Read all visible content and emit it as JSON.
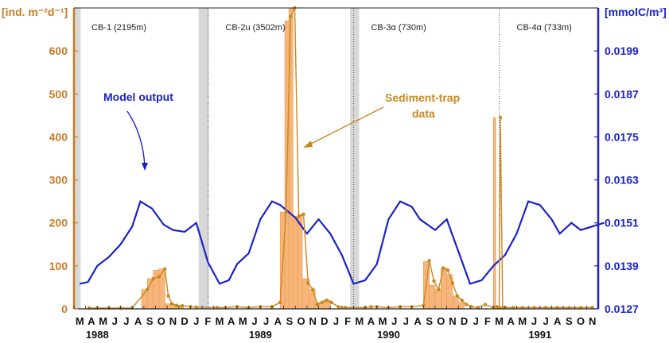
{
  "colors": {
    "left_axis": "#c87a28",
    "right_axis": "#1a22c8",
    "bar_fill": "#f7b57a",
    "bar_stroke": "#e59a55",
    "trap_line": "#c8891e",
    "model_line": "#1a22c8",
    "gap_shade": "#d8d8d8"
  },
  "chart_data": {
    "type": "bar+line",
    "left_axis": {
      "label": "[ind. m⁻²d⁻¹]",
      "ticks": [
        "0",
        "100",
        "200",
        "300",
        "400",
        "500",
        "600"
      ],
      "range": [
        0,
        700
      ]
    },
    "right_axis": {
      "label": "[mmolC/m³]",
      "ticks": [
        "0.0127",
        "0.0139",
        "0.0151",
        "0.0163",
        "0.0175",
        "0.0187",
        "0.0199"
      ],
      "range": [
        0.0127,
        0.0211
      ]
    },
    "x_axis": {
      "month_labels": [
        "M",
        "A",
        "M",
        "J",
        "J",
        "A",
        "S",
        "O",
        "N",
        "D",
        "J",
        "F",
        "M",
        "A",
        "M",
        "J",
        "J",
        "A",
        "S",
        "O",
        "N",
        "D",
        "J",
        "F",
        "M",
        "A",
        "M",
        "J",
        "J",
        "A",
        "S",
        "O",
        "N",
        "D",
        "J",
        "F",
        "M",
        "A",
        "M",
        "J",
        "J",
        "A",
        "S",
        "O",
        "N"
      ],
      "year_labels": [
        {
          "text": "1988",
          "month_index": 1.5
        },
        {
          "text": "1989",
          "month_index": 15.5
        },
        {
          "text": "1990",
          "month_index": 26.5
        },
        {
          "text": "1991",
          "month_index": 39.5
        }
      ]
    },
    "deployments": [
      {
        "label": "CB-1 (2195m)",
        "start": 0,
        "end": 11.5
      },
      {
        "label": "CB-2u (3502m)",
        "start": 11.5,
        "end": 24
      },
      {
        "label": "CB-3α (730m)",
        "start": 24,
        "end": 36
      },
      {
        "label": "CB-4α (733m)",
        "start": 36.5,
        "end": 45
      }
    ],
    "gaps": [
      [
        0,
        0.3
      ],
      [
        10.7,
        11.3
      ],
      [
        23.7,
        24.2
      ]
    ],
    "separators": [
      11.5,
      24,
      36.5
    ],
    "bars": [
      {
        "x0": 5.8,
        "x1": 6.3,
        "value": 45
      },
      {
        "x0": 6.3,
        "x1": 6.8,
        "value": 70
      },
      {
        "x0": 6.8,
        "x1": 7.3,
        "value": 90
      },
      {
        "x0": 7.3,
        "x1": 7.8,
        "value": 93
      },
      {
        "x0": 7.8,
        "x1": 8.6,
        "value": 12
      },
      {
        "x0": 8.6,
        "x1": 9.4,
        "value": 8
      },
      {
        "x0": 17.7,
        "x1": 18.1,
        "value": 225
      },
      {
        "x0": 18.1,
        "x1": 18.45,
        "value": 670
      },
      {
        "x0": 18.45,
        "x1": 18.8,
        "value": 700
      },
      {
        "x0": 18.8,
        "x1": 19.2,
        "value": 215
      },
      {
        "x0": 19.2,
        "x1": 19.6,
        "value": 220
      },
      {
        "x0": 19.6,
        "x1": 20.2,
        "value": 70
      },
      {
        "x0": 20.2,
        "x1": 20.7,
        "value": 45
      },
      {
        "x0": 20.7,
        "x1": 21.4,
        "value": 15
      },
      {
        "x0": 21.4,
        "x1": 22.0,
        "value": 20
      },
      {
        "x0": 30.0,
        "x1": 30.5,
        "value": 110
      },
      {
        "x0": 30.5,
        "x1": 31.0,
        "value": 55
      },
      {
        "x0": 31.0,
        "x1": 31.5,
        "value": 45
      },
      {
        "x0": 31.5,
        "x1": 32.0,
        "value": 95
      },
      {
        "x0": 32.0,
        "x1": 32.5,
        "value": 80
      },
      {
        "x0": 32.5,
        "x1": 33.0,
        "value": 30
      },
      {
        "x0": 33.0,
        "x1": 33.5,
        "value": 15
      },
      {
        "x0": 36.0,
        "x1": 36.2,
        "value": 445
      }
    ],
    "trap_series": {
      "name": "Sediment-trap data",
      "x": [
        0.8,
        1.5,
        2.5,
        3.5,
        4.5,
        5.8,
        6.3,
        6.8,
        7.3,
        7.6,
        7.9,
        8.3,
        8.8,
        9.5,
        10.0,
        11.8,
        12.5,
        13.5,
        14.5,
        15.5,
        16.5,
        17.2,
        17.7,
        18.1,
        18.45,
        18.8,
        19.2,
        19.6,
        20.0,
        20.4,
        20.8,
        21.2,
        21.6,
        22.2,
        22.8,
        24.5,
        25.0,
        25.5,
        26.5,
        27.5,
        28.5,
        29.5,
        30.0,
        30.4,
        30.8,
        31.2,
        31.6,
        32.0,
        32.4,
        32.8,
        33.2,
        33.6,
        34.2,
        34.8,
        35.5,
        35.8,
        36.0,
        36.1,
        36.3,
        36.5,
        37.2,
        38.0,
        39.0,
        40.0,
        41.0,
        42.0,
        43.0,
        44.0
      ],
      "values": [
        2,
        2,
        2,
        2,
        2,
        45,
        70,
        75,
        93,
        30,
        12,
        8,
        7,
        5,
        4,
        3,
        3,
        5,
        3,
        5,
        5,
        15,
        225,
        680,
        700,
        215,
        220,
        60,
        45,
        10,
        15,
        20,
        15,
        5,
        3,
        3,
        5,
        5,
        3,
        5,
        5,
        8,
        112,
        65,
        45,
        95,
        90,
        60,
        30,
        20,
        10,
        5,
        3,
        10,
        3,
        5,
        3,
        445,
        3,
        3,
        3,
        3,
        3,
        3,
        3,
        3,
        3,
        3
      ]
    },
    "model_series": {
      "name": "Model output",
      "x": [
        0,
        0.7,
        1.5,
        2.5,
        3.5,
        4.5,
        5.2,
        6.2,
        7.2,
        8.0,
        9.0,
        10.0,
        11.0,
        12.0,
        12.8,
        13.5,
        14.5,
        15.5,
        16.5,
        17.2,
        18.5,
        19.5,
        20.0,
        20.5,
        21.5,
        22.5,
        23.5,
        24.5,
        25.5,
        26.5,
        27.5,
        28.5,
        29.2,
        30.5,
        31.5,
        32.5,
        33.5,
        34.5,
        35.5,
        36.5,
        37.5,
        38.5,
        39.5,
        40.5,
        41.2,
        42.2,
        43.0,
        44.0,
        45.0
      ],
      "values": [
        0.0134,
        0.01345,
        0.0139,
        0.01415,
        0.0145,
        0.015,
        0.0157,
        0.0155,
        0.01505,
        0.0149,
        0.01485,
        0.0151,
        0.014,
        0.0134,
        0.0135,
        0.01395,
        0.01425,
        0.0152,
        0.0157,
        0.0156,
        0.01525,
        0.0148,
        0.015,
        0.0152,
        0.0148,
        0.0142,
        0.0134,
        0.0135,
        0.01395,
        0.0152,
        0.0157,
        0.01555,
        0.0152,
        0.0149,
        0.0152,
        0.0143,
        0.0134,
        0.0135,
        0.0139,
        0.0142,
        0.0148,
        0.0157,
        0.0156,
        0.0152,
        0.0148,
        0.0151,
        0.0149,
        0.015,
        0.0151
      ]
    },
    "annotations": [
      {
        "text": "Model output",
        "color": "model_line"
      },
      {
        "text_lines": [
          "Sediment-trap",
          "data"
        ],
        "color": "trap_line"
      }
    ]
  }
}
